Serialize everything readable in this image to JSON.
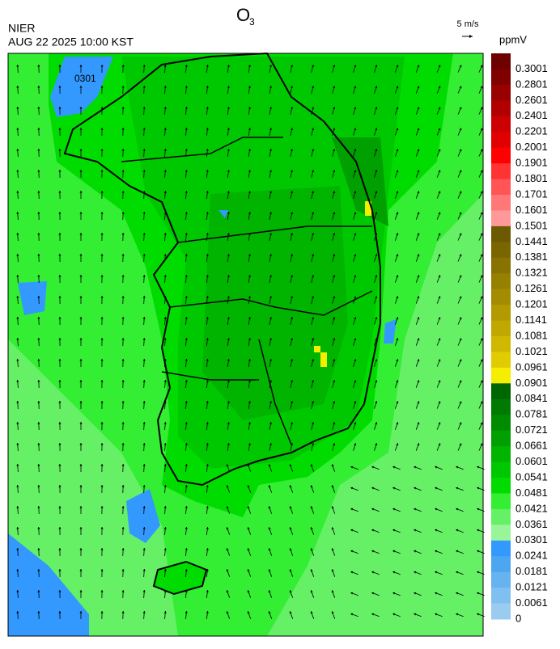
{
  "header": {
    "title": "O",
    "title_sub": "3",
    "agency": "NIER",
    "timestamp": "AUG 22 2025 10:00 KST"
  },
  "wind_scale": {
    "label": "5 m/s"
  },
  "map_annotation": "0301",
  "legend": {
    "unit": "ppmV",
    "labels": [
      "0.3001",
      "0.2801",
      "0.2601",
      "0.2401",
      "0.2201",
      "0.2001",
      "0.1901",
      "0.1801",
      "0.1701",
      "0.1601",
      "0.1501",
      "0.1441",
      "0.1381",
      "0.1321",
      "0.1261",
      "0.1201",
      "0.1141",
      "0.1081",
      "0.1021",
      "0.0961",
      "0.0901",
      "0.0841",
      "0.0781",
      "0.0721",
      "0.0661",
      "0.0601",
      "0.0541",
      "0.0481",
      "0.0421",
      "0.0361",
      "0.0301",
      "0.0241",
      "0.0181",
      "0.0121",
      "0.0061",
      "0"
    ],
    "colors": [
      "#6e0000",
      "#800000",
      "#990000",
      "#b00000",
      "#cc0000",
      "#e00000",
      "#ff0000",
      "#ff3333",
      "#ff5555",
      "#ff7777",
      "#ff9999",
      "#6b5a00",
      "#7a6600",
      "#887200",
      "#968000",
      "#a48c00",
      "#b29a00",
      "#c0a800",
      "#d0b800",
      "#e0cc00",
      "#f5ee00",
      "#006600",
      "#007a00",
      "#008c00",
      "#00a000",
      "#00b400",
      "#00c800",
      "#00dc00",
      "#33ee33",
      "#66f066",
      "#99f599",
      "#3399ff",
      "#4da6f0",
      "#66b3f0",
      "#80c0f0",
      "#99ccee"
    ]
  }
}
